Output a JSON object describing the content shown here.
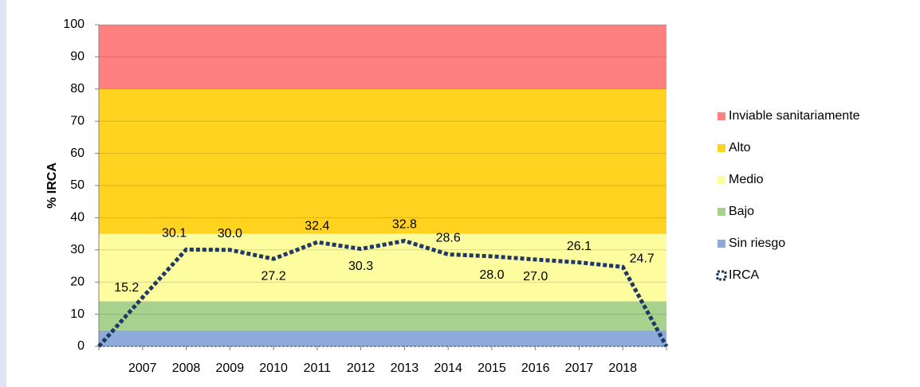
{
  "chart_data": {
    "type": "line",
    "y_label": "% IRCA",
    "categories": [
      null,
      "2007",
      "2008",
      "2009",
      "2010",
      "2011",
      "2012",
      "2013",
      "2014",
      "2015",
      "2016",
      "2017",
      "2018",
      null
    ],
    "bands": [
      {
        "name": "Sin riesgo",
        "color": "#8eaadb",
        "value": 5
      },
      {
        "name": "Bajo",
        "color": "#a9d18e",
        "value": 9
      },
      {
        "name": "Medio",
        "color": "#fdfda0",
        "value": 21
      },
      {
        "name": "Alto",
        "color": "#ffd320",
        "value": 45
      },
      {
        "name": "Inviable sanitariamente",
        "color": "#ff8080",
        "value": 20
      }
    ],
    "series": [
      {
        "name": "IRCA",
        "color": "#1f3864",
        "values": [
          0,
          15.2,
          30.1,
          30.0,
          27.2,
          32.4,
          30.3,
          32.8,
          28.6,
          28.0,
          27.0,
          26.1,
          24.7,
          0
        ],
        "value_labels": [
          null,
          "15.2",
          "30.1",
          "30.0",
          "27.2",
          "32.4",
          "30.3",
          "32.8",
          "28.6",
          "28.0",
          "27.0",
          "26.1",
          "24.7",
          null
        ]
      }
    ],
    "ylim": [
      0,
      100
    ],
    "yticks": [
      0,
      10,
      20,
      30,
      40,
      50,
      60,
      70,
      80,
      90,
      100
    ],
    "grid": true
  }
}
